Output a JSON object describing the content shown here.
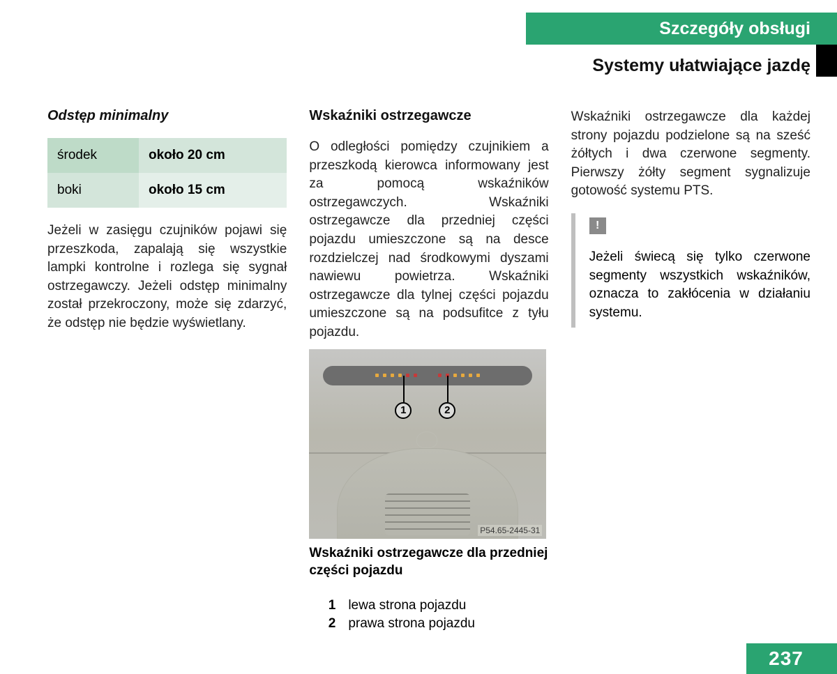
{
  "header": {
    "tab_label": "Szczegóły obsługi",
    "tab_bg": "#2aa471",
    "tab_text_color": "#ffffff",
    "section_title": "Systemy ułatwiające jazdę"
  },
  "col1": {
    "heading": "Odstęp minimalny",
    "table": {
      "rows": [
        {
          "label": "środek",
          "value": "około 20 cm"
        },
        {
          "label": "boki",
          "value": "około 15 cm"
        }
      ],
      "row1_label_bg": "#bedbc8",
      "row1_value_bg": "#d3e5da",
      "row2_label_bg": "#d3e5da",
      "row2_value_bg": "#e4efe9"
    },
    "paragraph": "Jeżeli w zasięgu czujników pojawi się przeszkoda, zapalają się wszystkie lampki kontrolne i rozlega się sygnał ostrzegawczy. Jeżeli odstęp minimalny został przekroczony, może się zdarzyć, że odstęp nie będzie wyświetlany."
  },
  "col2": {
    "heading": "Wskaźniki ostrzegawcze",
    "paragraph": "O odległości pomiędzy czujnikiem a przeszkodą kierowca informowany jest za pomocą wskaźników ostrzegawczych. Wskaźniki ostrzegawcze dla przedniej części pojazdu umieszczone są na desce rozdzielczej nad środkowymi dyszami nawiewu powietrza. Wskaźniki ostrzegawcze dla tylnej części pojazdu umieszczone są na podsufitce z tyłu pojazdu.",
    "figure": {
      "code": "P54.65-2445-31",
      "led_yellow": "#e7a93e",
      "led_red": "#c63a3a",
      "strip_bg": "#6d6d6d",
      "bg_gradient_top": "#c6c6c4",
      "bg_gradient_bottom": "#bcbcb6",
      "callouts": {
        "1": "1",
        "2": "2"
      }
    },
    "caption": "Wskaźniki ostrzegawcze dla przedniej części pojazdu",
    "legend": [
      {
        "num": "1",
        "text": "lewa strona pojazdu"
      },
      {
        "num": "2",
        "text": "prawa strona pojazdu"
      }
    ]
  },
  "col3": {
    "paragraph": "Wskaźniki ostrzegawcze dla każdej strony pojazdu podzielone są na sześć żółtych i dwa czerwone segmenty. Pierwszy żółty segment sygnalizuje gotowość systemu PTS.",
    "note": {
      "badge": "!",
      "badge_bg": "#8a8a8a",
      "border_color": "#bfbfbf",
      "text": "Jeżeli świecą się tylko czerwone segmenty wszystkich wskaźników, oznacza to zakłócenia w działaniu systemu."
    }
  },
  "page_number": "237",
  "page_number_bg": "#2aa471"
}
